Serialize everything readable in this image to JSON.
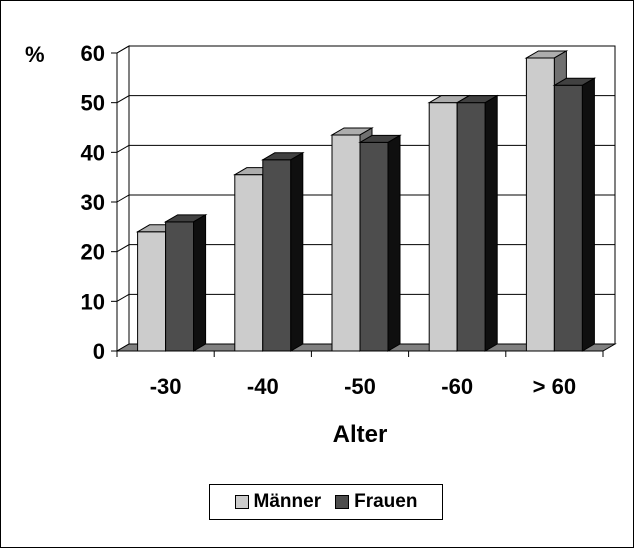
{
  "chart_data": {
    "type": "bar",
    "categories": [
      "-30",
      "-40",
      "-50",
      "-60",
      "> 60"
    ],
    "series": [
      {
        "name": "Männer",
        "values": [
          24,
          35.5,
          43.5,
          50,
          59
        ],
        "color": "#cccccc"
      },
      {
        "name": "Frauen",
        "values": [
          26,
          38.5,
          42,
          50,
          53.5
        ],
        "color": "#4d4d4d"
      }
    ],
    "y_unit": "%",
    "xlabel": "Alter",
    "ylabel": "",
    "ylim": [
      0,
      60
    ],
    "yticks": [
      "0",
      "10",
      "20",
      "30",
      "40",
      "50",
      "60"
    ],
    "grid": true,
    "style": "3d-bar",
    "legend_placement": "bottom-center"
  }
}
